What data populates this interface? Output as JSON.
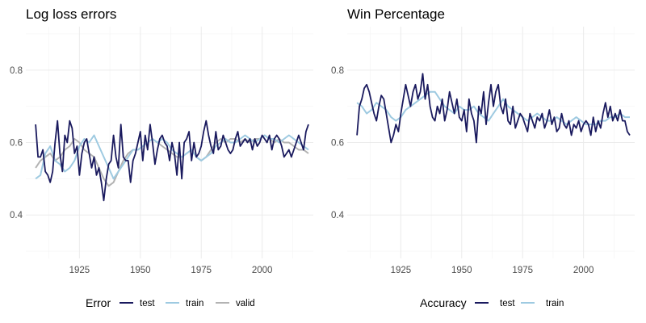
{
  "chart_data": [
    {
      "type": "line",
      "title": "Log loss errors",
      "xlabel": "",
      "ylabel": "",
      "xlim": [
        1903,
        2021
      ],
      "ylim": [
        0.28,
        0.92
      ],
      "x_ticks": [
        1925,
        1950,
        1975,
        2000
      ],
      "y_ticks": [
        0.4,
        0.6,
        0.8
      ],
      "y_tick_labels": [
        "0.4",
        "0.6",
        "0.8"
      ],
      "grid": true,
      "legend": {
        "title": "Error",
        "position": "bottom"
      },
      "colors": {
        "test": "#1a1a5e",
        "train": "#9ecae1",
        "valid": "#b3b3b3"
      },
      "series": [
        {
          "name": "test",
          "x": [
            1907,
            1908,
            1909,
            1910,
            1911,
            1912,
            1913,
            1914,
            1915,
            1916,
            1917,
            1918,
            1919,
            1920,
            1921,
            1922,
            1923,
            1924,
            1925,
            1926,
            1927,
            1928,
            1929,
            1930,
            1931,
            1932,
            1933,
            1934,
            1935,
            1936,
            1937,
            1938,
            1939,
            1940,
            1941,
            1942,
            1943,
            1944,
            1945,
            1946,
            1947,
            1948,
            1949,
            1950,
            1951,
            1952,
            1953,
            1954,
            1955,
            1956,
            1957,
            1958,
            1959,
            1960,
            1961,
            1962,
            1963,
            1964,
            1965,
            1966,
            1967,
            1968,
            1969,
            1970,
            1971,
            1972,
            1973,
            1974,
            1975,
            1976,
            1977,
            1978,
            1979,
            1980,
            1981,
            1982,
            1983,
            1984,
            1985,
            1986,
            1987,
            1988,
            1989,
            1990,
            1991,
            1992,
            1993,
            1994,
            1995,
            1996,
            1997,
            1998,
            1999,
            2000,
            2001,
            2002,
            2003,
            2004,
            2005,
            2006,
            2007,
            2008,
            2009,
            2010,
            2011,
            2012,
            2013,
            2014,
            2015,
            2016,
            2017,
            2018,
            2019
          ],
          "y": [
            0.65,
            0.56,
            0.56,
            0.58,
            0.52,
            0.51,
            0.49,
            0.52,
            0.6,
            0.66,
            0.57,
            0.52,
            0.62,
            0.6,
            0.66,
            0.64,
            0.57,
            0.59,
            0.51,
            0.57,
            0.6,
            0.61,
            0.57,
            0.53,
            0.56,
            0.51,
            0.53,
            0.49,
            0.44,
            0.5,
            0.54,
            0.55,
            0.62,
            0.56,
            0.53,
            0.65,
            0.56,
            0.55,
            0.55,
            0.49,
            0.55,
            0.57,
            0.6,
            0.63,
            0.55,
            0.62,
            0.58,
            0.65,
            0.6,
            0.54,
            0.58,
            0.61,
            0.62,
            0.6,
            0.59,
            0.55,
            0.6,
            0.57,
            0.51,
            0.6,
            0.5,
            0.6,
            0.61,
            0.63,
            0.55,
            0.6,
            0.56,
            0.57,
            0.59,
            0.63,
            0.66,
            0.62,
            0.59,
            0.57,
            0.63,
            0.58,
            0.59,
            0.62,
            0.6,
            0.58,
            0.57,
            0.58,
            0.61,
            0.63,
            0.59,
            0.6,
            0.61,
            0.6,
            0.61,
            0.58,
            0.61,
            0.59,
            0.6,
            0.62,
            0.61,
            0.6,
            0.62,
            0.58,
            0.61,
            0.62,
            0.61,
            0.59,
            0.56,
            0.57,
            0.58,
            0.56,
            0.58,
            0.6,
            0.62,
            0.6,
            0.58,
            0.63,
            0.65
          ]
        },
        {
          "name": "train",
          "x": [
            1907,
            1909,
            1911,
            1913,
            1915,
            1917,
            1919,
            1921,
            1923,
            1925,
            1927,
            1929,
            1931,
            1933,
            1935,
            1937,
            1939,
            1941,
            1943,
            1945,
            1947,
            1949,
            1951,
            1953,
            1955,
            1957,
            1959,
            1961,
            1963,
            1965,
            1967,
            1969,
            1971,
            1973,
            1975,
            1977,
            1979,
            1981,
            1983,
            1985,
            1987,
            1989,
            1991,
            1993,
            1995,
            1997,
            1999,
            2001,
            2003,
            2005,
            2007,
            2009,
            2011,
            2013,
            2015,
            2017,
            2019
          ],
          "y": [
            0.5,
            0.51,
            0.57,
            0.59,
            0.55,
            0.54,
            0.52,
            0.53,
            0.55,
            0.59,
            0.61,
            0.6,
            0.62,
            0.59,
            0.56,
            0.53,
            0.5,
            0.52,
            0.54,
            0.56,
            0.58,
            0.58,
            0.59,
            0.6,
            0.61,
            0.6,
            0.61,
            0.6,
            0.58,
            0.57,
            0.56,
            0.57,
            0.58,
            0.56,
            0.55,
            0.56,
            0.57,
            0.59,
            0.6,
            0.61,
            0.6,
            0.6,
            0.61,
            0.62,
            0.61,
            0.6,
            0.61,
            0.62,
            0.61,
            0.61,
            0.6,
            0.61,
            0.62,
            0.61,
            0.6,
            0.59,
            0.58
          ]
        },
        {
          "name": "valid",
          "x": [
            1907,
            1909,
            1911,
            1913,
            1915,
            1917,
            1919,
            1921,
            1923,
            1925,
            1927,
            1929,
            1931,
            1933,
            1935,
            1937,
            1939,
            1941,
            1943,
            1945,
            1947,
            1949,
            1951,
            1953,
            1955,
            1957,
            1959,
            1961,
            1963,
            1965,
            1967,
            1969,
            1971,
            1973,
            1975,
            1977,
            1979,
            1981,
            1983,
            1985,
            1987,
            1989,
            1991,
            1993,
            1995,
            1997,
            1999,
            2001,
            2003,
            2005,
            2007,
            2009,
            2011,
            2013,
            2015,
            2017,
            2019
          ],
          "y": [
            0.53,
            0.55,
            0.56,
            0.57,
            0.55,
            0.56,
            0.58,
            0.59,
            0.61,
            0.6,
            0.58,
            0.57,
            0.56,
            0.53,
            0.5,
            0.48,
            0.49,
            0.52,
            0.55,
            0.57,
            0.58,
            0.58,
            0.59,
            0.6,
            0.61,
            0.6,
            0.59,
            0.58,
            0.57,
            0.56,
            0.56,
            0.57,
            0.58,
            0.56,
            0.55,
            0.56,
            0.58,
            0.6,
            0.61,
            0.6,
            0.61,
            0.61,
            0.6,
            0.61,
            0.6,
            0.61,
            0.61,
            0.62,
            0.61,
            0.6,
            0.61,
            0.6,
            0.6,
            0.59,
            0.58,
            0.58,
            0.57
          ]
        }
      ]
    },
    {
      "type": "line",
      "title": "Win Percentage",
      "xlabel": "",
      "ylabel": "",
      "xlim": [
        1903,
        2021
      ],
      "ylim": [
        0.28,
        0.92
      ],
      "x_ticks": [
        1925,
        1950,
        1975,
        2000
      ],
      "y_ticks": [
        0.4,
        0.6,
        0.8
      ],
      "y_tick_labels": [
        "0.4",
        "0.6",
        "0.8"
      ],
      "grid": true,
      "legend": {
        "title": "Accuracy",
        "position": "bottom"
      },
      "colors": {
        "test": "#1a1a5e",
        "train": "#9ecae1"
      },
      "series": [
        {
          "name": "test",
          "x": [
            1907,
            1908,
            1909,
            1910,
            1911,
            1912,
            1913,
            1914,
            1915,
            1916,
            1917,
            1918,
            1919,
            1920,
            1921,
            1922,
            1923,
            1924,
            1925,
            1926,
            1927,
            1928,
            1929,
            1930,
            1931,
            1932,
            1933,
            1934,
            1935,
            1936,
            1937,
            1938,
            1939,
            1940,
            1941,
            1942,
            1943,
            1944,
            1945,
            1946,
            1947,
            1948,
            1949,
            1950,
            1951,
            1952,
            1953,
            1954,
            1955,
            1956,
            1957,
            1958,
            1959,
            1960,
            1961,
            1962,
            1963,
            1964,
            1965,
            1966,
            1967,
            1968,
            1969,
            1970,
            1971,
            1972,
            1973,
            1974,
            1975,
            1976,
            1977,
            1978,
            1979,
            1980,
            1981,
            1982,
            1983,
            1984,
            1985,
            1986,
            1987,
            1988,
            1989,
            1990,
            1991,
            1992,
            1993,
            1994,
            1995,
            1996,
            1997,
            1998,
            1999,
            2000,
            2001,
            2002,
            2003,
            2004,
            2005,
            2006,
            2007,
            2008,
            2009,
            2010,
            2011,
            2012,
            2013,
            2014,
            2015,
            2016,
            2017,
            2018,
            2019
          ],
          "y": [
            0.62,
            0.7,
            0.72,
            0.75,
            0.76,
            0.74,
            0.71,
            0.68,
            0.66,
            0.7,
            0.73,
            0.72,
            0.68,
            0.64,
            0.6,
            0.62,
            0.65,
            0.63,
            0.68,
            0.72,
            0.76,
            0.73,
            0.7,
            0.74,
            0.76,
            0.72,
            0.74,
            0.79,
            0.72,
            0.76,
            0.7,
            0.67,
            0.66,
            0.7,
            0.68,
            0.72,
            0.66,
            0.69,
            0.74,
            0.71,
            0.68,
            0.72,
            0.67,
            0.66,
            0.69,
            0.63,
            0.72,
            0.68,
            0.66,
            0.6,
            0.7,
            0.68,
            0.74,
            0.65,
            0.71,
            0.76,
            0.7,
            0.74,
            0.76,
            0.7,
            0.68,
            0.72,
            0.66,
            0.65,
            0.7,
            0.64,
            0.66,
            0.68,
            0.67,
            0.65,
            0.63,
            0.68,
            0.66,
            0.64,
            0.67,
            0.66,
            0.68,
            0.64,
            0.66,
            0.69,
            0.65,
            0.67,
            0.63,
            0.64,
            0.68,
            0.65,
            0.64,
            0.66,
            0.62,
            0.65,
            0.64,
            0.66,
            0.63,
            0.65,
            0.66,
            0.65,
            0.62,
            0.67,
            0.63,
            0.66,
            0.64,
            0.68,
            0.71,
            0.67,
            0.7,
            0.66,
            0.68,
            0.66,
            0.69,
            0.66,
            0.66,
            0.63,
            0.62
          ]
        },
        {
          "name": "train",
          "x": [
            1907,
            1909,
            1911,
            1913,
            1915,
            1917,
            1919,
            1921,
            1923,
            1925,
            1927,
            1929,
            1931,
            1933,
            1935,
            1937,
            1939,
            1941,
            1943,
            1945,
            1947,
            1949,
            1951,
            1953,
            1955,
            1957,
            1959,
            1961,
            1963,
            1965,
            1967,
            1969,
            1971,
            1973,
            1975,
            1977,
            1979,
            1981,
            1983,
            1985,
            1987,
            1989,
            1991,
            1993,
            1995,
            1997,
            1999,
            2001,
            2003,
            2005,
            2007,
            2009,
            2011,
            2013,
            2015,
            2017,
            2019
          ],
          "y": [
            0.71,
            0.7,
            0.68,
            0.69,
            0.71,
            0.7,
            0.69,
            0.67,
            0.66,
            0.67,
            0.69,
            0.7,
            0.71,
            0.72,
            0.73,
            0.74,
            0.74,
            0.72,
            0.7,
            0.69,
            0.68,
            0.7,
            0.69,
            0.69,
            0.7,
            0.68,
            0.67,
            0.66,
            0.68,
            0.7,
            0.72,
            0.7,
            0.69,
            0.68,
            0.67,
            0.66,
            0.67,
            0.68,
            0.67,
            0.66,
            0.66,
            0.67,
            0.66,
            0.65,
            0.66,
            0.67,
            0.66,
            0.65,
            0.65,
            0.65,
            0.66,
            0.66,
            0.67,
            0.67,
            0.68,
            0.67,
            0.67
          ]
        }
      ]
    }
  ]
}
